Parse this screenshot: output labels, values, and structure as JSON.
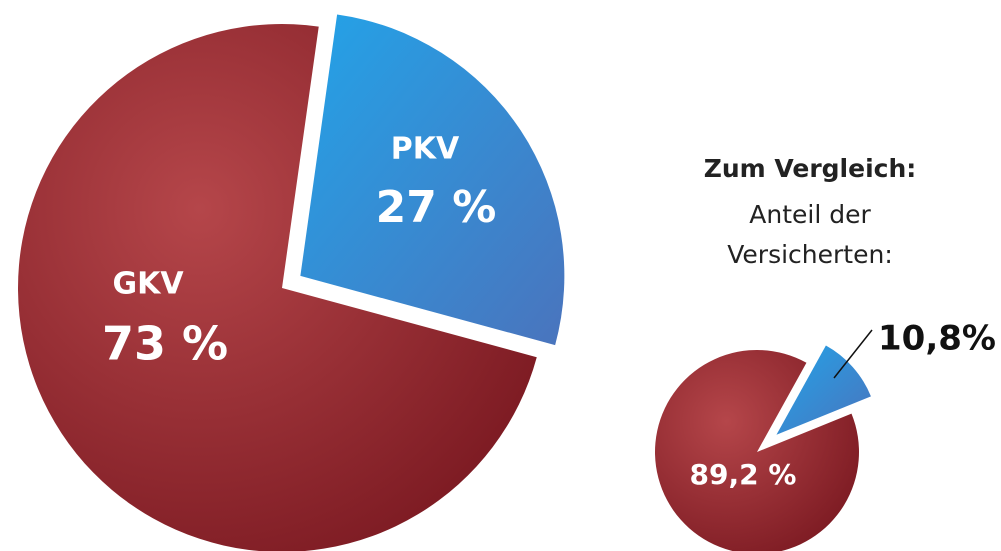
{
  "chart_data": [
    {
      "type": "pie",
      "categories": [
        "GKV",
        "PKV"
      ],
      "values": [
        73,
        27
      ],
      "value_labels": [
        "73 %",
        "27 %"
      ],
      "colors": [
        "#a1303a",
        "#2e9be0"
      ]
    },
    {
      "type": "pie",
      "title": "Zum Vergleich:",
      "subtitle": "Anteil der Versicherten:",
      "categories": [
        null,
        null
      ],
      "values": [
        89.2,
        10.8
      ],
      "value_labels": [
        "89,2 %",
        "10,8%"
      ],
      "colors": [
        "#a1303a",
        "#2e9be0"
      ]
    }
  ]
}
